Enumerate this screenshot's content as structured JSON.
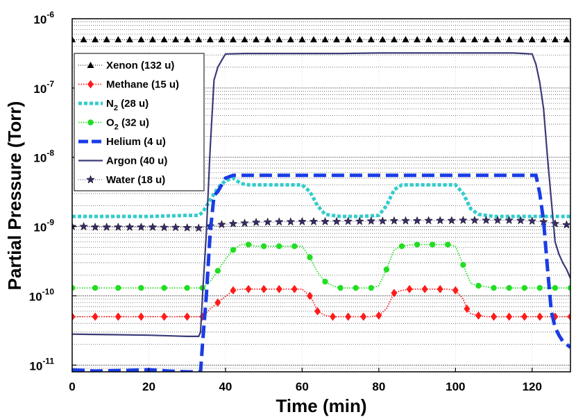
{
  "chart_data": {
    "type": "line",
    "xlabel": "Time (min)",
    "ylabel": "Partial Pressure (Torr)",
    "xlim": [
      0,
      130
    ],
    "ylim": [
      8e-12,
      1e-06
    ],
    "yscale": "log",
    "grid": true,
    "legend_position": "top-left",
    "x_ticks": [
      "0",
      "20",
      "40",
      "60",
      "80",
      "100",
      "120"
    ],
    "y_ticks": [
      {
        "base": "10",
        "exp": "-6"
      },
      {
        "base": "10",
        "exp": "-7"
      },
      {
        "base": "10",
        "exp": "-8"
      },
      {
        "base": "10",
        "exp": "-9"
      },
      {
        "base": "10",
        "exp": "-10"
      },
      {
        "base": "10",
        "exp": "-11"
      }
    ],
    "series": [
      {
        "name": "Xenon (132 u)",
        "color": "#000000",
        "style": "dotted-triangle",
        "x": [
          0,
          3,
          6,
          9,
          12,
          15,
          18,
          21,
          24,
          27,
          30,
          33,
          36,
          39,
          42,
          45,
          48,
          51,
          54,
          57,
          60,
          63,
          66,
          69,
          72,
          75,
          78,
          81,
          84,
          87,
          90,
          93,
          96,
          99,
          102,
          105,
          108,
          111,
          114,
          117,
          120,
          123,
          126,
          129
        ],
        "values": [
          5e-07,
          5e-07,
          5e-07,
          5e-07,
          5e-07,
          5e-07,
          5e-07,
          5e-07,
          5e-07,
          5e-07,
          5e-07,
          5e-07,
          5e-07,
          5e-07,
          5e-07,
          5e-07,
          5e-07,
          5e-07,
          5e-07,
          5e-07,
          5e-07,
          5e-07,
          5e-07,
          5e-07,
          5e-07,
          5e-07,
          5e-07,
          5e-07,
          5e-07,
          5e-07,
          5e-07,
          5e-07,
          5e-07,
          5e-07,
          5e-07,
          5e-07,
          5e-07,
          5e-07,
          5e-07,
          5e-07,
          5e-07,
          5e-07,
          5e-07,
          5e-07
        ]
      },
      {
        "name": "Methane (15 u)",
        "color": "#ff1a1a",
        "style": "dotted-diamond",
        "x": [
          0,
          3,
          6,
          9,
          12,
          15,
          18,
          21,
          24,
          27,
          30,
          33,
          34,
          36,
          38,
          40,
          42,
          44,
          46,
          48,
          50,
          52,
          54,
          56,
          58,
          60,
          62,
          63,
          64,
          66,
          68,
          70,
          72,
          74,
          76,
          78,
          80,
          82,
          84,
          86,
          88,
          90,
          92,
          94,
          96,
          98,
          100,
          102,
          103,
          104,
          106,
          108,
          110,
          112,
          114,
          116,
          118,
          120,
          122,
          124,
          126,
          128,
          130
        ],
        "values": [
          5e-11,
          5e-11,
          5e-11,
          5e-11,
          5e-11,
          5e-11,
          5e-11,
          5e-11,
          5e-11,
          5e-11,
          5e-11,
          5e-11,
          5e-11,
          6.5e-11,
          8e-11,
          9.8e-11,
          1.2e-10,
          1.25e-10,
          1.25e-10,
          1.25e-10,
          1.25e-10,
          1.25e-10,
          1.25e-10,
          1.25e-10,
          1.25e-10,
          1.25e-10,
          1e-10,
          8e-11,
          6e-11,
          5.2e-11,
          5e-11,
          5e-11,
          5e-11,
          5e-11,
          5e-11,
          5e-11,
          5.2e-11,
          6.5e-11,
          1.1e-10,
          1.2e-10,
          1.25e-10,
          1.25e-10,
          1.25e-10,
          1.25e-10,
          1.25e-10,
          1.25e-10,
          1.2e-10,
          9e-11,
          6.5e-11,
          5.5e-11,
          5.2e-11,
          5e-11,
          5e-11,
          5e-11,
          5e-11,
          5e-11,
          5e-11,
          5e-11,
          5e-11,
          5e-11,
          5e-11,
          5e-11,
          5e-11
        ]
      },
      {
        "name": "N2 (28 u)",
        "color": "#33cccc",
        "style": "thick-dotted",
        "x": [
          0,
          10,
          20,
          30,
          33,
          34,
          36,
          38,
          40,
          42,
          44,
          46,
          50,
          55,
          60,
          62,
          64,
          66,
          70,
          75,
          80,
          82,
          84,
          86,
          90,
          95,
          100,
          102,
          104,
          106,
          110,
          115,
          120,
          125,
          128,
          130
        ],
        "values": [
          1.4e-09,
          1.4e-09,
          1.4e-09,
          1.45e-09,
          1.45e-09,
          1.6e-09,
          2.4e-09,
          3.6e-09,
          4.6e-09,
          5e-09,
          4.2e-09,
          4e-09,
          4e-09,
          4e-09,
          4e-09,
          3.2e-09,
          2e-09,
          1.5e-09,
          1.4e-09,
          1.4e-09,
          1.45e-09,
          2e-09,
          3.4e-09,
          4e-09,
          4e-09,
          4e-09,
          4e-09,
          3e-09,
          1.8e-09,
          1.5e-09,
          1.4e-09,
          1.4e-09,
          1.4e-09,
          1.4e-09,
          1.4e-09,
          1.4e-09
        ]
      },
      {
        "name": "O2 (32 u)",
        "color": "#22dd22",
        "style": "dotted-circle",
        "x": [
          0,
          3,
          6,
          9,
          12,
          15,
          18,
          21,
          24,
          27,
          30,
          33,
          34,
          36,
          38,
          40,
          42,
          44,
          46,
          48,
          50,
          52,
          54,
          56,
          58,
          60,
          62,
          64,
          66,
          68,
          70,
          72,
          74,
          76,
          78,
          80,
          82,
          84,
          86,
          88,
          90,
          92,
          94,
          96,
          98,
          100,
          102,
          104,
          106,
          108,
          110,
          112,
          114,
          116,
          118,
          120,
          122,
          124,
          126,
          128,
          130
        ],
        "values": [
          1.3e-10,
          1.3e-10,
          1.3e-10,
          1.3e-10,
          1.3e-10,
          1.3e-10,
          1.3e-10,
          1.3e-10,
          1.3e-10,
          1.3e-10,
          1.3e-10,
          1.3e-10,
          1.3e-10,
          1.6e-10,
          2.3e-10,
          3.4e-10,
          4.6e-10,
          5.5e-10,
          5.5e-10,
          5.2e-10,
          5.2e-10,
          5.2e-10,
          5.2e-10,
          5.2e-10,
          5.2e-10,
          5.2e-10,
          3.6e-10,
          2.2e-10,
          1.6e-10,
          1.4e-10,
          1.3e-10,
          1.3e-10,
          1.3e-10,
          1.3e-10,
          1.3e-10,
          1.4e-10,
          2.4e-10,
          4.6e-10,
          5.2e-10,
          5.4e-10,
          5.5e-10,
          5.5e-10,
          5.5e-10,
          5.5e-10,
          5.5e-10,
          5.2e-10,
          2.8e-10,
          1.5e-10,
          1.4e-10,
          1.35e-10,
          1.3e-10,
          1.3e-10,
          1.3e-10,
          1.3e-10,
          1.3e-10,
          1.3e-10,
          1.3e-10,
          1.3e-10,
          1.3e-10,
          1.3e-10,
          1.3e-10
        ]
      },
      {
        "name": "Helium (4 u)",
        "color": "#1a3ce6",
        "style": "dashed-thick",
        "x": [
          0,
          3,
          6,
          10,
          15,
          20,
          25,
          30,
          33.5,
          34,
          35,
          36,
          37,
          38,
          39,
          40,
          42,
          45,
          50,
          60,
          70,
          80,
          90,
          100,
          110,
          115,
          120,
          121,
          122,
          123,
          124,
          125,
          126,
          127,
          128,
          129,
          130
        ],
        "values": [
          8.5e-12,
          8.4e-12,
          8.2e-12,
          8.3e-12,
          8.4e-12,
          8.6e-12,
          8.2e-12,
          8e-12,
          8e-12,
          2e-11,
          1e-10,
          8e-10,
          2.8e-09,
          3.2e-09,
          4e-09,
          5e-09,
          5.5e-09,
          5.5e-09,
          5.5e-09,
          5.5e-09,
          5.5e-09,
          5.5e-09,
          5.5e-09,
          5.5e-09,
          5.5e-09,
          5.5e-09,
          5.5e-09,
          5.5e-09,
          3e-09,
          1.2e-09,
          2.5e-10,
          6e-11,
          3.5e-11,
          2.7e-11,
          2.2e-11,
          2e-11,
          1.8e-11
        ]
      },
      {
        "name": "Argon (40 u)",
        "color": "#3a3a78",
        "style": "solid",
        "x": [
          0,
          10,
          20,
          30,
          33,
          33.5,
          34,
          35,
          36,
          37,
          38,
          39,
          40,
          45,
          50,
          60,
          70,
          80,
          90,
          100,
          110,
          115,
          120,
          121,
          122,
          123,
          124,
          125,
          126,
          127,
          128,
          129,
          130
        ],
        "values": [
          2.8e-11,
          2.75e-11,
          2.7e-11,
          2.6e-11,
          2.6e-11,
          3e-11,
          1e-10,
          8e-10,
          1.3e-08,
          1.3e-07,
          2e-07,
          2.5e-07,
          3.1e-07,
          3.15e-07,
          3.15e-07,
          3.15e-07,
          3.15e-07,
          3.2e-07,
          3.2e-07,
          3.2e-07,
          3.2e-07,
          3.2e-07,
          3.1e-07,
          2.2e-07,
          1.2e-07,
          5e-08,
          1e-08,
          2.4e-09,
          6e-10,
          4e-10,
          3e-10,
          2.4e-10,
          1.8e-10
        ]
      },
      {
        "name": "Water (18 u)",
        "color": "#3a2a6a",
        "style": "dotted-star",
        "x": [
          0,
          3,
          6,
          9,
          12,
          15,
          18,
          21,
          24,
          27,
          30,
          33,
          36,
          39,
          42,
          45,
          48,
          51,
          54,
          57,
          60,
          63,
          66,
          69,
          72,
          75,
          78,
          81,
          84,
          87,
          90,
          93,
          96,
          99,
          102,
          105,
          108,
          111,
          114,
          117,
          120,
          123,
          126,
          129
        ],
        "values": [
          1e-09,
          1e-09,
          9.8e-10,
          9.8e-10,
          9.8e-10,
          9.8e-10,
          9.8e-10,
          9.8e-10,
          9.7e-10,
          9.7e-10,
          9.6e-10,
          9.5e-10,
          1.02e-09,
          1.07e-09,
          1.1e-09,
          1.12e-09,
          1.15e-09,
          1.16e-09,
          1.17e-09,
          1.17e-09,
          1.18e-09,
          1.18e-09,
          1.18e-09,
          1.18e-09,
          1.19e-09,
          1.19e-09,
          1.2e-09,
          1.2e-09,
          1.21e-09,
          1.21e-09,
          1.21e-09,
          1.22e-09,
          1.22e-09,
          1.22e-09,
          1.23e-09,
          1.23e-09,
          1.23e-09,
          1.23e-09,
          1.23e-09,
          1.22e-09,
          1.2e-09,
          1.17e-09,
          1.1e-09,
          1.06e-09
        ]
      }
    ],
    "legend": [
      {
        "key": "xenon",
        "label": "Xenon (132 u)"
      },
      {
        "key": "methane",
        "label": "Methane (15 u)"
      },
      {
        "key": "n2",
        "label_main": "N",
        "label_sub": "2",
        "label_tail": " (28 u)"
      },
      {
        "key": "o2",
        "label_main": "O",
        "label_sub": "2",
        "label_tail": " (32 u)"
      },
      {
        "key": "helium",
        "label": "Helium (4 u)"
      },
      {
        "key": "argon",
        "label": "Argon (40 u)"
      },
      {
        "key": "water",
        "label": "Water (18 u)"
      }
    ]
  }
}
